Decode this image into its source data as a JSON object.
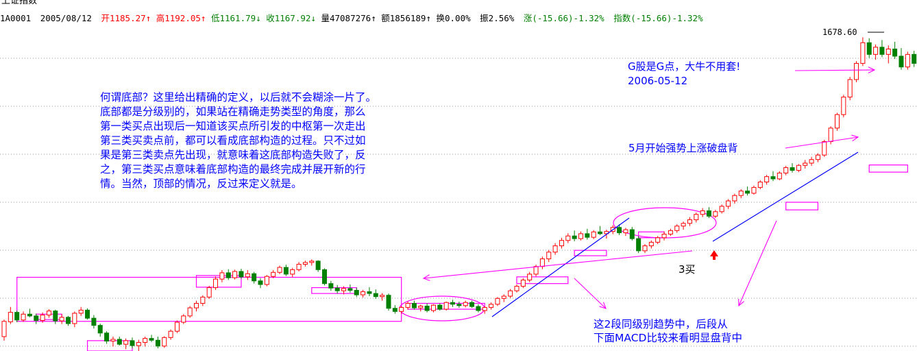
{
  "chart_data": {
    "type": "candlestick",
    "title": "上证指数",
    "header": {
      "code": "1A0001",
      "date": "2005/08/12",
      "open": "开1185.27↑",
      "high": "高1192.05↑",
      "low": "低1161.79↓",
      "close": "收1167.92↓",
      "volume": "量47087276↑",
      "amount": "额1856189↑",
      "turnover": "换0.00%",
      "amplitude": "振2.56%",
      "change": "涨(-15.66)-1.32%",
      "index_change": "指数(-15.66)-1.32%"
    },
    "max_label": "1678.60",
    "ylim": [
      980,
      1700
    ],
    "grid": "dotted horizontal",
    "colors": {
      "up": "#ff0000",
      "down": "#008000",
      "box": "#ff00ff",
      "trend": "#0000ff",
      "text_blue": "#0000ff",
      "text_magenta": "#ff00ff",
      "header_green": "#008000"
    },
    "annotations": {
      "definition": [
        "何谓底部？这里给出精确的定义，以后就不会糊涂一片了。",
        "底部都是分级别的，如果站在精确走势类型的角度，那么",
        "第一类买点出现后一知道该买点所引发的中枢第一次走出",
        "第三类买卖点前，都可以看成底部构造的过程。只不过如",
        "果是第三类卖点先出现，就意味着这底部构造失败了，反",
        "之，第三类买点意味着底部构造的最终完成并展开新的行",
        "情。当然，顶部的情况，反过来定义就是。"
      ],
      "g_point": [
        "G股是G点，大牛不用套!",
        "2006-05-12"
      ],
      "may": "5月开始强势上涨破盘背",
      "third_buy": "3买",
      "divergence": [
        "这2段同级别趋势中，后段从",
        "下面MACD比较来看明显盘背中"
      ]
    },
    "candles": [
      [
        1012,
        1050,
        1003,
        1046
      ],
      [
        1045,
        1078,
        1040,
        1066
      ],
      [
        1066,
        1070,
        1044,
        1049
      ],
      [
        1049,
        1068,
        1045,
        1062
      ],
      [
        1062,
        1074,
        1055,
        1058
      ],
      [
        1058,
        1063,
        1040,
        1048
      ],
      [
        1048,
        1066,
        1043,
        1060
      ],
      [
        1060,
        1073,
        1054,
        1069
      ],
      [
        1069,
        1072,
        1040,
        1047
      ],
      [
        1047,
        1062,
        1040,
        1055
      ],
      [
        1055,
        1058,
        1036,
        1041
      ],
      [
        1041,
        1068,
        1033,
        1064
      ],
      [
        1064,
        1078,
        1058,
        1071
      ],
      [
        1071,
        1075,
        1050,
        1053
      ],
      [
        1053,
        1060,
        1030,
        1037
      ],
      [
        1037,
        1041,
        1012,
        1020
      ],
      [
        1020,
        1024,
        996,
        1002
      ],
      [
        1002,
        1012,
        990,
        1006
      ],
      [
        1006,
        1012,
        992,
        995
      ],
      [
        995,
        1008,
        984,
        1003
      ],
      [
        1003,
        1010,
        986,
        992
      ],
      [
        992,
        1005,
        980,
        999
      ],
      [
        999,
        1012,
        990,
        1008
      ],
      [
        1008,
        1016,
        1000,
        1004
      ],
      [
        1004,
        1012,
        986,
        991
      ],
      [
        991,
        1013,
        987,
        1010
      ],
      [
        1010,
        1028,
        1005,
        1024
      ],
      [
        1024,
        1048,
        1020,
        1044
      ],
      [
        1044,
        1062,
        1040,
        1058
      ],
      [
        1058,
        1080,
        1054,
        1076
      ],
      [
        1076,
        1092,
        1068,
        1086
      ],
      [
        1086,
        1104,
        1080,
        1100
      ],
      [
        1100,
        1125,
        1096,
        1121
      ],
      [
        1121,
        1146,
        1116,
        1140
      ],
      [
        1140,
        1160,
        1133,
        1154
      ],
      [
        1154,
        1162,
        1138,
        1143
      ],
      [
        1143,
        1161,
        1139,
        1157
      ],
      [
        1157,
        1163,
        1141,
        1145
      ],
      [
        1145,
        1160,
        1138,
        1152
      ],
      [
        1152,
        1156,
        1130,
        1136
      ],
      [
        1136,
        1142,
        1120,
        1128
      ],
      [
        1128,
        1149,
        1124,
        1146
      ],
      [
        1146,
        1160,
        1142,
        1155
      ],
      [
        1155,
        1170,
        1151,
        1166
      ],
      [
        1166,
        1172,
        1147,
        1151
      ],
      [
        1151,
        1165,
        1144,
        1161
      ],
      [
        1161,
        1178,
        1157,
        1173
      ],
      [
        1173,
        1181,
        1168,
        1177
      ],
      [
        1177,
        1184,
        1170,
        1180
      ],
      [
        1180,
        1182,
        1156,
        1161
      ],
      [
        1161,
        1164,
        1126,
        1130
      ],
      [
        1130,
        1136,
        1114,
        1120
      ],
      [
        1120,
        1127,
        1108,
        1114
      ],
      [
        1114,
        1124,
        1106,
        1119
      ],
      [
        1119,
        1128,
        1110,
        1115
      ],
      [
        1115,
        1121,
        1100,
        1105
      ],
      [
        1105,
        1116,
        1099,
        1112
      ],
      [
        1112,
        1122,
        1102,
        1108
      ],
      [
        1108,
        1117,
        1096,
        1101
      ],
      [
        1101,
        1109,
        1092,
        1104
      ],
      [
        1104,
        1108,
        1070,
        1075
      ],
      [
        1075,
        1082,
        1063,
        1068
      ],
      [
        1068,
        1080,
        1063,
        1077
      ],
      [
        1077,
        1090,
        1072,
        1086
      ],
      [
        1086,
        1092,
        1072,
        1076
      ],
      [
        1076,
        1083,
        1068,
        1080
      ],
      [
        1080,
        1086,
        1066,
        1070
      ],
      [
        1070,
        1084,
        1066,
        1082
      ],
      [
        1082,
        1086,
        1070,
        1073
      ],
      [
        1073,
        1090,
        1070,
        1088
      ],
      [
        1088,
        1094,
        1078,
        1084
      ],
      [
        1084,
        1090,
        1076,
        1081
      ],
      [
        1081,
        1092,
        1077,
        1088
      ],
      [
        1088,
        1092,
        1076,
        1079
      ],
      [
        1079,
        1084,
        1066,
        1070
      ],
      [
        1070,
        1080,
        1063,
        1077
      ],
      [
        1077,
        1088,
        1072,
        1084
      ],
      [
        1084,
        1100,
        1080,
        1097
      ],
      [
        1097,
        1106,
        1089,
        1102
      ],
      [
        1102,
        1118,
        1098,
        1114
      ],
      [
        1114,
        1128,
        1110,
        1124
      ],
      [
        1124,
        1142,
        1120,
        1138
      ],
      [
        1138,
        1156,
        1133,
        1151
      ],
      [
        1151,
        1172,
        1146,
        1168
      ],
      [
        1168,
        1190,
        1162,
        1185
      ],
      [
        1185,
        1205,
        1178,
        1200
      ],
      [
        1200,
        1220,
        1194,
        1214
      ],
      [
        1214,
        1232,
        1208,
        1226
      ],
      [
        1226,
        1242,
        1220,
        1236
      ],
      [
        1236,
        1248,
        1224,
        1230
      ],
      [
        1230,
        1246,
        1226,
        1241
      ],
      [
        1241,
        1252,
        1228,
        1233
      ],
      [
        1233,
        1249,
        1229,
        1245
      ],
      [
        1245,
        1258,
        1238,
        1241
      ],
      [
        1241,
        1250,
        1230,
        1246
      ],
      [
        1246,
        1260,
        1240,
        1255
      ],
      [
        1255,
        1262,
        1238,
        1243
      ],
      [
        1243,
        1254,
        1236,
        1250
      ],
      [
        1250,
        1256,
        1226,
        1230
      ],
      [
        1230,
        1236,
        1198,
        1203
      ],
      [
        1203,
        1218,
        1198,
        1214
      ],
      [
        1214,
        1226,
        1208,
        1222
      ],
      [
        1222,
        1236,
        1218,
        1232
      ],
      [
        1232,
        1246,
        1226,
        1240
      ],
      [
        1240,
        1252,
        1236,
        1248
      ],
      [
        1248,
        1262,
        1243,
        1258
      ],
      [
        1258,
        1268,
        1250,
        1264
      ],
      [
        1264,
        1278,
        1258,
        1272
      ],
      [
        1272,
        1288,
        1266,
        1284
      ],
      [
        1284,
        1298,
        1278,
        1292
      ],
      [
        1292,
        1300,
        1276,
        1280
      ],
      [
        1280,
        1294,
        1276,
        1290
      ],
      [
        1290,
        1306,
        1286,
        1302
      ],
      [
        1302,
        1318,
        1296,
        1314
      ],
      [
        1314,
        1330,
        1308,
        1326
      ],
      [
        1326,
        1340,
        1320,
        1336
      ],
      [
        1336,
        1346,
        1326,
        1331
      ],
      [
        1331,
        1348,
        1328,
        1344
      ],
      [
        1344,
        1360,
        1340,
        1356
      ],
      [
        1356,
        1372,
        1350,
        1368
      ],
      [
        1368,
        1380,
        1358,
        1363
      ],
      [
        1363,
        1380,
        1360,
        1376
      ],
      [
        1376,
        1392,
        1371,
        1388
      ],
      [
        1388,
        1398,
        1377,
        1382
      ],
      [
        1382,
        1396,
        1378,
        1393
      ],
      [
        1393,
        1405,
        1386,
        1398
      ],
      [
        1398,
        1412,
        1392,
        1406
      ],
      [
        1406,
        1420,
        1400,
        1416
      ],
      [
        1416,
        1450,
        1412,
        1446
      ],
      [
        1446,
        1480,
        1440,
        1476
      ],
      [
        1476,
        1510,
        1470,
        1506
      ],
      [
        1506,
        1550,
        1500,
        1545
      ],
      [
        1545,
        1590,
        1538,
        1584
      ],
      [
        1584,
        1625,
        1578,
        1620
      ],
      [
        1620,
        1678,
        1614,
        1666
      ],
      [
        1666,
        1676,
        1632,
        1640
      ],
      [
        1640,
        1662,
        1628,
        1656
      ],
      [
        1656,
        1672,
        1634,
        1640
      ],
      [
        1640,
        1660,
        1620,
        1652
      ],
      [
        1652,
        1668,
        1630,
        1636
      ],
      [
        1636,
        1654,
        1606,
        1612
      ],
      [
        1612,
        1646,
        1606,
        1640
      ],
      [
        1640,
        1648,
        1612,
        1620
      ],
      [
        1620,
        1638,
        1610,
        1632
      ]
    ]
  }
}
